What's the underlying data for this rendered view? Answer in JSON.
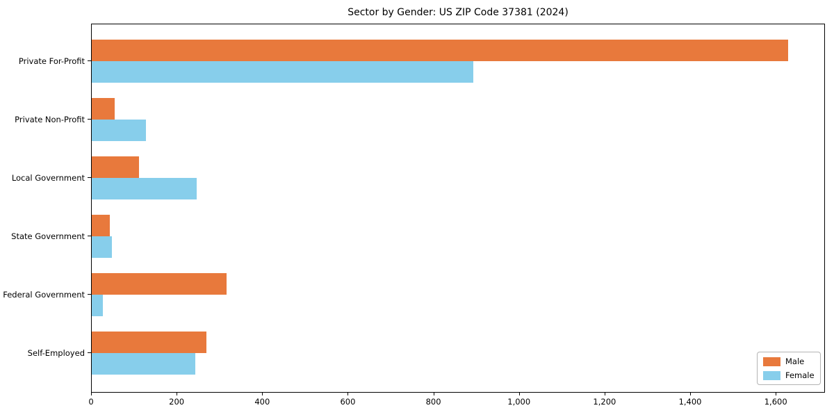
{
  "chart_data": {
    "type": "bar",
    "orientation": "horizontal",
    "title": "Sector by Gender: US ZIP Code 37381 (2024)",
    "categories": [
      "Private For-Profit",
      "Private Non-Profit",
      "Local Government",
      "State Government",
      "Federal Government",
      "Self-Employed"
    ],
    "series": [
      {
        "name": "Male",
        "color": "#E8793C",
        "values": [
          1631,
          54,
          110,
          43,
          315,
          269
        ]
      },
      {
        "name": "Female",
        "color": "#87CEEB",
        "values": [
          894,
          127,
          245,
          48,
          26,
          242
        ]
      }
    ],
    "xlabel": "",
    "ylabel": "",
    "xlim": [
      0,
      1715
    ],
    "x_ticks": [
      0,
      200,
      400,
      600,
      800,
      1000,
      1200,
      1400,
      1600
    ],
    "x_tick_labels": [
      "0",
      "200",
      "400",
      "600",
      "800",
      "1,000",
      "1,200",
      "1,400",
      "1,600"
    ],
    "grid": false,
    "legend_position": "lower right"
  }
}
